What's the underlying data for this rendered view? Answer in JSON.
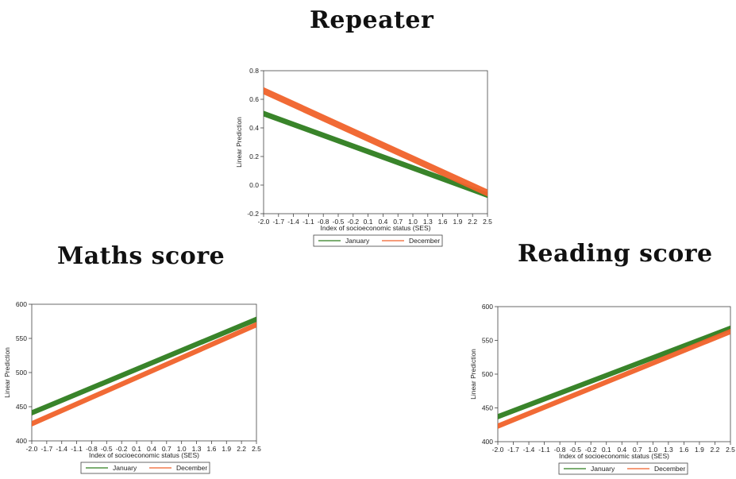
{
  "headings": {
    "repeater": "Repeater",
    "maths": "Maths score",
    "reading": "Reading score"
  },
  "colors": {
    "january": "#2e7d1f",
    "december": "#f0622a"
  },
  "chart_data": [
    {
      "id": "repeater",
      "type": "line",
      "title": "Repeater",
      "xlabel": "Index of socioeconomic status (SES)",
      "ylabel": "Linear Prediction",
      "x_ticks": [
        "-2.0",
        "-1.7",
        "-1.4",
        "-1.1",
        "-0.8",
        "-0.5",
        "-0.2",
        "0.1",
        "0.4",
        "0.7",
        "1.0",
        "1.3",
        "1.6",
        "1.9",
        "2.2",
        "2.5"
      ],
      "xlim": [
        -2.0,
        2.5
      ],
      "ylim": [
        -0.2,
        0.8
      ],
      "y_ticks": [
        "-0.2",
        "0.0",
        "0.2",
        "0.4",
        "0.6",
        "0.8"
      ],
      "legend_position": "bottom",
      "series": [
        {
          "name": "January",
          "x": [
            -2.0,
            2.5
          ],
          "y": [
            0.5,
            -0.07
          ],
          "band": 0.02
        },
        {
          "name": "December",
          "x": [
            -2.0,
            2.5
          ],
          "y": [
            0.66,
            -0.055
          ],
          "band": 0.025
        }
      ]
    },
    {
      "id": "maths",
      "type": "line",
      "title": "Maths score",
      "xlabel": "Index of socioeconomic status (SES)",
      "ylabel": "Linear Prediction",
      "x_ticks": [
        "-2.0",
        "-1.7",
        "-1.4",
        "-1.1",
        "-0.8",
        "-0.5",
        "-0.2",
        "0.1",
        "0.4",
        "0.7",
        "1.0",
        "1.3",
        "1.6",
        "1.9",
        "2.2",
        "2.5"
      ],
      "xlim": [
        -2.0,
        2.5
      ],
      "ylim": [
        400,
        600
      ],
      "y_ticks": [
        "400",
        "450",
        "500",
        "550",
        "600"
      ],
      "legend_position": "bottom",
      "series": [
        {
          "name": "January",
          "x": [
            -2.0,
            2.5
          ],
          "y": [
            441,
            578
          ],
          "band": 4
        },
        {
          "name": "December",
          "x": [
            -2.0,
            2.5
          ],
          "y": [
            425,
            570
          ],
          "band": 4
        }
      ]
    },
    {
      "id": "reading",
      "type": "line",
      "title": "Reading score",
      "xlabel": "Index of socioeconomic status (SES)",
      "ylabel": "Linear Prediction",
      "x_ticks": [
        "-2.0",
        "-1.7",
        "-1.4",
        "-1.1",
        "-0.8",
        "-0.5",
        "-0.2",
        "0.1",
        "0.4",
        "0.7",
        "1.0",
        "1.3",
        "1.6",
        "1.9",
        "2.2",
        "2.5"
      ],
      "xlim": [
        -2.0,
        2.5
      ],
      "ylim": [
        400,
        600
      ],
      "y_ticks": [
        "400",
        "450",
        "500",
        "550",
        "600"
      ],
      "legend_position": "bottom",
      "series": [
        {
          "name": "January",
          "x": [
            -2.0,
            2.5
          ],
          "y": [
            437,
            568
          ],
          "band": 4
        },
        {
          "name": "December",
          "x": [
            -2.0,
            2.5
          ],
          "y": [
            423,
            563
          ],
          "band": 4
        }
      ]
    }
  ]
}
